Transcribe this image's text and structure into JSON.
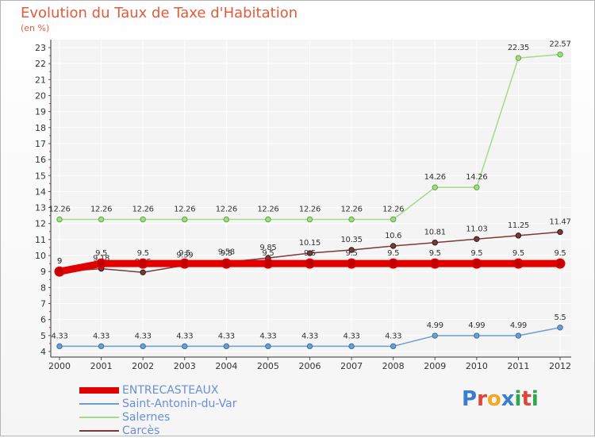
{
  "header": {
    "title": "Evolution du Taux de Taxe d'Habitation",
    "subtitle": "(en %)"
  },
  "logo": {
    "letters": [
      "P",
      "r",
      "o",
      "x",
      "i",
      "t",
      "i"
    ],
    "colors": [
      "#3b7ed0",
      "#e0453a",
      "#f5a623",
      "#3b7ed0",
      "#2aa84a",
      "#e0453a",
      "#2aa84a"
    ]
  },
  "chart_data": {
    "type": "line",
    "title": "Evolution du Taux de Taxe d'Habitation",
    "ylabel": "(en %)",
    "xlabel": "",
    "x": [
      "2000",
      "2001",
      "2002",
      "2003",
      "2004",
      "2005",
      "2006",
      "2007",
      "2008",
      "2009",
      "2010",
      "2011",
      "2012"
    ],
    "ylim": [
      4,
      23
    ],
    "yticks": [
      "4",
      "5",
      "6",
      "7",
      "8",
      "9",
      "10",
      "11",
      "12",
      "13",
      "14",
      "15",
      "16",
      "17",
      "18",
      "19",
      "20",
      "21",
      "22",
      "23"
    ],
    "legend_position": "bottom-left",
    "series": [
      {
        "name": "ENTRECASTEAUX",
        "color": "#e00000",
        "values": [
          9,
          9.5,
          9.5,
          9.5,
          9.5,
          9.5,
          9.5,
          9.5,
          9.5,
          9.5,
          9.5,
          9.5,
          9.5
        ],
        "labels": [
          "9",
          "9.5",
          "9.5",
          "9.5",
          "9.5",
          "9.5",
          "9.5",
          "9.5",
          "9.5",
          "9.5",
          "9.5",
          "9.5",
          "9.5"
        ]
      },
      {
        "name": "Saint-Antonin-du-Var",
        "color": "#6a9fd4",
        "values": [
          4.33,
          4.33,
          4.33,
          4.33,
          4.33,
          4.33,
          4.33,
          4.33,
          4.33,
          4.99,
          4.99,
          4.99,
          5.5
        ],
        "labels": [
          "4.33",
          "4.33",
          "4.33",
          "4.33",
          "4.33",
          "4.33",
          "4.33",
          "4.33",
          "4.33",
          "4.99",
          "4.99",
          "4.99",
          "5.5"
        ]
      },
      {
        "name": "Salernes",
        "color": "#a6d98a",
        "values": [
          12.26,
          12.26,
          12.26,
          12.26,
          12.26,
          12.26,
          12.26,
          12.26,
          12.26,
          14.26,
          14.26,
          22.35,
          22.57
        ],
        "labels": [
          "12.26",
          "12.26",
          "12.26",
          "12.26",
          "12.26",
          "12.26",
          "12.26",
          "12.26",
          "12.26",
          "14.26",
          "14.26",
          "22.35",
          "22.57"
        ]
      },
      {
        "name": "Carcès",
        "color": "#7a3a3a",
        "values": [
          9,
          9.18,
          8.95,
          9.39,
          9.58,
          9.85,
          10.15,
          10.35,
          10.6,
          10.81,
          11.03,
          11.25,
          11.47
        ],
        "labels": [
          "9",
          "9.18",
          "8.95",
          "9.39",
          "9.58",
          "9.85",
          "10.15",
          "10.35",
          "10.6",
          "10.81",
          "11.03",
          "11.25",
          "11.47"
        ]
      }
    ]
  }
}
